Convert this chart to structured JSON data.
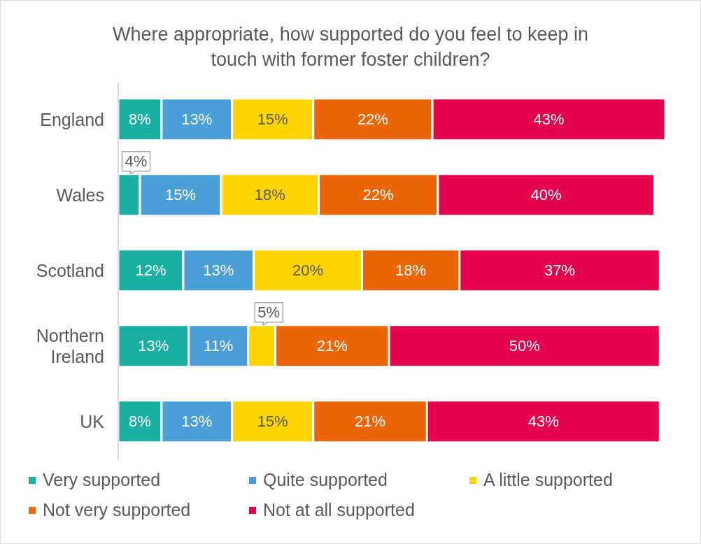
{
  "chart_data": {
    "type": "bar",
    "orientation": "horizontal",
    "stacked": true,
    "title": "Where appropriate, how supported do you feel to keep in touch with former foster children?",
    "categories": [
      "England",
      "Wales",
      "Scotland",
      "Northern Ireland",
      "UK"
    ],
    "series": [
      {
        "name": "Very supported",
        "color": "#1aafa3",
        "values": [
          8,
          4,
          12,
          13,
          8
        ],
        "value_labels": [
          "8%",
          "4%",
          "12%",
          "13%",
          "8%"
        ]
      },
      {
        "name": "Quite supported",
        "color": "#4a9fd6",
        "values": [
          13,
          15,
          13,
          11,
          13
        ],
        "value_labels": [
          "13%",
          "15%",
          "13%",
          "11%",
          "13%"
        ]
      },
      {
        "name": "A little supported",
        "color": "#ffd500",
        "values": [
          15,
          18,
          20,
          5,
          15
        ],
        "value_labels": [
          "15%",
          "18%",
          "20%",
          "5%",
          "15%"
        ]
      },
      {
        "name": "Not very supported",
        "color": "#ec6608",
        "values": [
          22,
          22,
          18,
          21,
          21
        ],
        "value_labels": [
          "22%",
          "22%",
          "18%",
          "21%",
          "21%"
        ]
      },
      {
        "name": "Not at all supported",
        "color": "#e4004f",
        "values": [
          43,
          40,
          37,
          50,
          43
        ],
        "value_labels": [
          "43%",
          "40%",
          "37%",
          "50%",
          "43%"
        ]
      }
    ],
    "xlim": [
      0,
      101
    ],
    "legend": "bottom",
    "tick_labels": "y"
  }
}
